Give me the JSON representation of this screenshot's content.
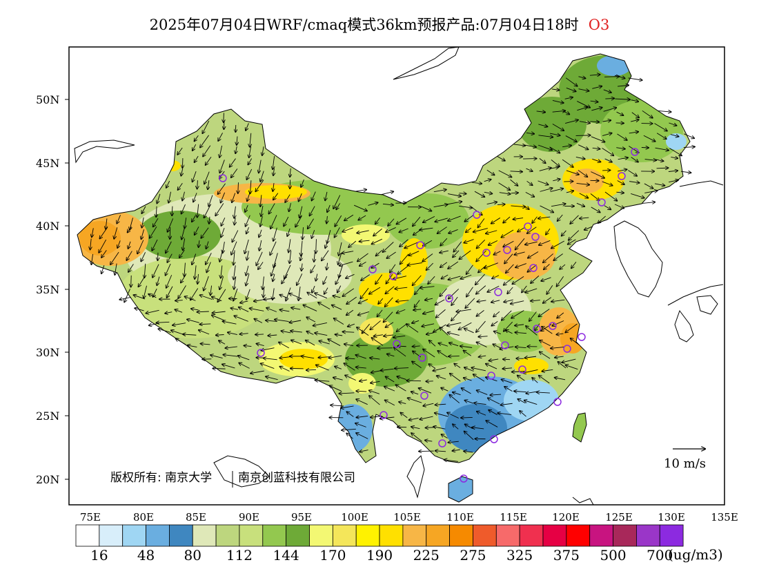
{
  "header": {
    "title": "2025年07月04日WRF/cmaq模式36km预报产品:07月04日18时",
    "species": "O3"
  },
  "map": {
    "lat_labels": [
      "50N",
      "45N",
      "40N",
      "35N",
      "30N",
      "25N",
      "20N"
    ],
    "lon_labels": [
      "75E",
      "80E",
      "85E",
      "90E",
      "95E",
      "100E",
      "105E",
      "110E",
      "115E",
      "120E",
      "125E",
      "130E",
      "135E"
    ],
    "copyright": "版权所有: 南京大学",
    "copyright2": "南京创蓝科技有限公司",
    "vector_ref": "10 m/s"
  },
  "legend": {
    "colors": [
      "#ffffff",
      "#d8eefa",
      "#9fd6f3",
      "#6aaee0",
      "#3f87c0",
      "#dfe8b8",
      "#bdd67e",
      "#c8e07c",
      "#93c84f",
      "#6eaa37",
      "#f3f873",
      "#f4e65a",
      "#fff200",
      "#ffe000",
      "#f7b646",
      "#f6a623",
      "#f68a00",
      "#ef5b2b",
      "#f76a6a",
      "#f0304f",
      "#e60044",
      "#ff0000",
      "#c81480",
      "#a8285a",
      "#9a36c8",
      "#8c2ae0"
    ],
    "labels": [
      "16",
      "48",
      "80",
      "112",
      "144",
      "170",
      "190",
      "225",
      "275",
      "325",
      "375",
      "500",
      "700"
    ],
    "unit": "(ug/m3)"
  }
}
